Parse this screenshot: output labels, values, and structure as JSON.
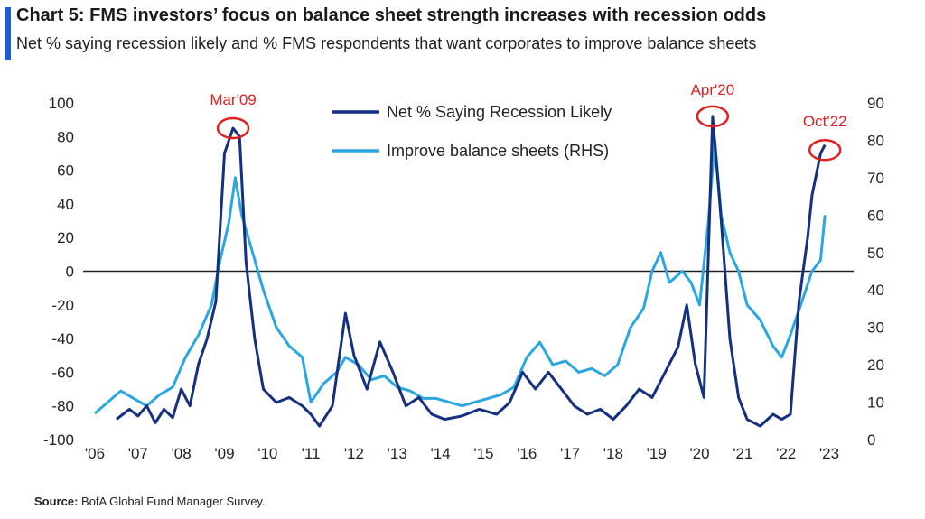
{
  "header": {
    "title": "Chart 5: FMS investors’ focus on balance sheet strength increases with recession odds",
    "subtitle": "Net % saying recession likely and % FMS respondents that want corporates to improve balance sheets"
  },
  "footer": {
    "source_label": "Source:",
    "source_text": "BofA Global Fund Manager Survey."
  },
  "colors": {
    "accent": "#1f5bd8",
    "series_dark": "#15307e",
    "series_light": "#2aa7e0",
    "annotation": "#e02020"
  },
  "chart_data": {
    "type": "line",
    "x_tick_labels": [
      "'06",
      "'07",
      "'08",
      "'09",
      "'10",
      "'11",
      "'12",
      "'13",
      "'14",
      "'15",
      "'16",
      "'17",
      "'18",
      "'19",
      "'20",
      "'21",
      "'22",
      "'23"
    ],
    "x_range": [
      2006,
      2023
    ],
    "y_left_ticks": [
      "100",
      "80",
      "60",
      "40",
      "20",
      "0",
      "-20",
      "-40",
      "-60",
      "-80",
      "-100"
    ],
    "y_left_range": [
      -100,
      100
    ],
    "y_right_ticks": [
      "90",
      "80",
      "70",
      "60",
      "50",
      "40",
      "30",
      "20",
      "10",
      "0"
    ],
    "y_right_range": [
      0,
      90
    ],
    "grid": false,
    "zero_line": true,
    "legend_position": "top-center",
    "series": [
      {
        "name": "Net % Saying Recession Likely",
        "axis": "left",
        "color_key": "series_dark",
        "points": [
          [
            2006.5,
            -88
          ],
          [
            2006.8,
            -82
          ],
          [
            2007.0,
            -86
          ],
          [
            2007.2,
            -80
          ],
          [
            2007.4,
            -90
          ],
          [
            2007.6,
            -82
          ],
          [
            2007.8,
            -87
          ],
          [
            2008.0,
            -70
          ],
          [
            2008.2,
            -80
          ],
          [
            2008.4,
            -55
          ],
          [
            2008.6,
            -40
          ],
          [
            2008.8,
            -18
          ],
          [
            2009.0,
            70
          ],
          [
            2009.2,
            85
          ],
          [
            2009.35,
            80
          ],
          [
            2009.5,
            5
          ],
          [
            2009.7,
            -40
          ],
          [
            2009.9,
            -70
          ],
          [
            2010.2,
            -78
          ],
          [
            2010.5,
            -75
          ],
          [
            2010.8,
            -80
          ],
          [
            2011.0,
            -85
          ],
          [
            2011.2,
            -92
          ],
          [
            2011.5,
            -80
          ],
          [
            2011.8,
            -25
          ],
          [
            2012.0,
            -50
          ],
          [
            2012.3,
            -70
          ],
          [
            2012.6,
            -42
          ],
          [
            2012.9,
            -60
          ],
          [
            2013.2,
            -80
          ],
          [
            2013.5,
            -75
          ],
          [
            2013.8,
            -85
          ],
          [
            2014.1,
            -88
          ],
          [
            2014.5,
            -86
          ],
          [
            2014.9,
            -82
          ],
          [
            2015.3,
            -85
          ],
          [
            2015.6,
            -78
          ],
          [
            2015.9,
            -60
          ],
          [
            2016.2,
            -70
          ],
          [
            2016.5,
            -60
          ],
          [
            2016.8,
            -70
          ],
          [
            2017.1,
            -80
          ],
          [
            2017.4,
            -85
          ],
          [
            2017.7,
            -82
          ],
          [
            2018.0,
            -88
          ],
          [
            2018.3,
            -80
          ],
          [
            2018.6,
            -70
          ],
          [
            2018.9,
            -75
          ],
          [
            2019.2,
            -60
          ],
          [
            2019.5,
            -45
          ],
          [
            2019.7,
            -20
          ],
          [
            2019.9,
            -55
          ],
          [
            2020.1,
            -75
          ],
          [
            2020.3,
            92
          ],
          [
            2020.5,
            30
          ],
          [
            2020.7,
            -40
          ],
          [
            2020.9,
            -75
          ],
          [
            2021.1,
            -88
          ],
          [
            2021.4,
            -92
          ],
          [
            2021.7,
            -85
          ],
          [
            2021.9,
            -88
          ],
          [
            2022.1,
            -85
          ],
          [
            2022.3,
            -18
          ],
          [
            2022.5,
            20
          ],
          [
            2022.6,
            45
          ],
          [
            2022.8,
            70
          ],
          [
            2022.9,
            75
          ]
        ]
      },
      {
        "name": "Improve balance sheets (RHS)",
        "axis": "right",
        "color_key": "series_light",
        "points": [
          [
            2006.0,
            7
          ],
          [
            2006.3,
            10
          ],
          [
            2006.6,
            13
          ],
          [
            2006.9,
            11
          ],
          [
            2007.2,
            9
          ],
          [
            2007.5,
            12
          ],
          [
            2007.8,
            14
          ],
          [
            2008.1,
            22
          ],
          [
            2008.4,
            28
          ],
          [
            2008.7,
            36
          ],
          [
            2008.9,
            48
          ],
          [
            2009.1,
            58
          ],
          [
            2009.25,
            70
          ],
          [
            2009.4,
            60
          ],
          [
            2009.6,
            52
          ],
          [
            2009.9,
            40
          ],
          [
            2010.2,
            30
          ],
          [
            2010.5,
            25
          ],
          [
            2010.8,
            22
          ],
          [
            2011.0,
            10
          ],
          [
            2011.3,
            15
          ],
          [
            2011.6,
            18
          ],
          [
            2011.8,
            22
          ],
          [
            2012.1,
            20
          ],
          [
            2012.4,
            16
          ],
          [
            2012.7,
            17
          ],
          [
            2013.0,
            14
          ],
          [
            2013.3,
            13
          ],
          [
            2013.6,
            11
          ],
          [
            2013.9,
            11
          ],
          [
            2014.2,
            10
          ],
          [
            2014.5,
            9
          ],
          [
            2014.8,
            10
          ],
          [
            2015.1,
            11
          ],
          [
            2015.4,
            12
          ],
          [
            2015.7,
            14
          ],
          [
            2016.0,
            22
          ],
          [
            2016.3,
            26
          ],
          [
            2016.6,
            20
          ],
          [
            2016.9,
            21
          ],
          [
            2017.2,
            18
          ],
          [
            2017.5,
            19
          ],
          [
            2017.8,
            17
          ],
          [
            2018.1,
            20
          ],
          [
            2018.4,
            30
          ],
          [
            2018.7,
            35
          ],
          [
            2018.9,
            45
          ],
          [
            2019.1,
            50
          ],
          [
            2019.3,
            42
          ],
          [
            2019.6,
            45
          ],
          [
            2019.8,
            42
          ],
          [
            2020.0,
            36
          ],
          [
            2020.2,
            58
          ],
          [
            2020.35,
            80
          ],
          [
            2020.5,
            60
          ],
          [
            2020.7,
            50
          ],
          [
            2020.9,
            45
          ],
          [
            2021.1,
            36
          ],
          [
            2021.4,
            32
          ],
          [
            2021.7,
            25
          ],
          [
            2021.9,
            22
          ],
          [
            2022.1,
            28
          ],
          [
            2022.4,
            38
          ],
          [
            2022.6,
            45
          ],
          [
            2022.8,
            48
          ],
          [
            2022.9,
            60
          ]
        ]
      }
    ],
    "annotations": [
      {
        "label": "Mar'09",
        "x": 2009.2,
        "y": 85,
        "axis": "left"
      },
      {
        "label": "Apr'20",
        "x": 2020.3,
        "y": 92,
        "axis": "left"
      },
      {
        "label": "Oct'22",
        "x": 2022.9,
        "y": 72,
        "axis": "left"
      }
    ]
  }
}
